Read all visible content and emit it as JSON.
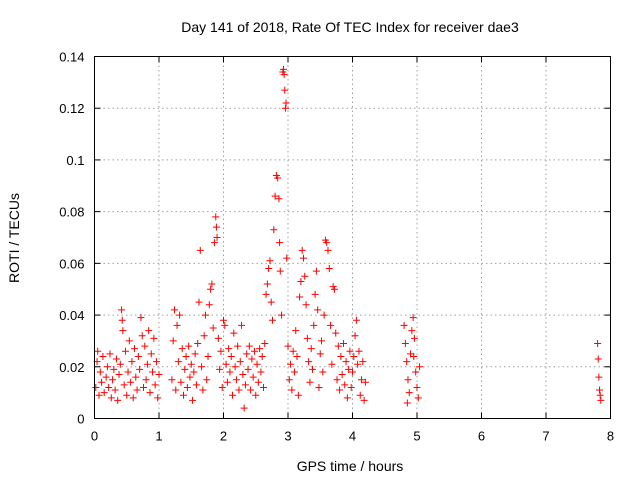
{
  "chart_data": {
    "type": "scatter",
    "title": "Day 141 of 2018, Rate Of TEC Index for receiver dae3",
    "xlabel": "GPS time / hours",
    "ylabel": "ROTI / TECUs",
    "xlim": [
      0,
      8
    ],
    "ylim": [
      0,
      0.14
    ],
    "grid": true,
    "xticks": [
      0,
      1,
      2,
      3,
      4,
      5,
      6,
      7,
      8
    ],
    "xtick_labels": [
      "0",
      "1",
      "2",
      "3",
      "4",
      "5",
      "6",
      "7",
      "8"
    ],
    "yticks": [
      0,
      0.02,
      0.04,
      0.06,
      0.08,
      0.1,
      0.12,
      0.14
    ],
    "ytick_labels": [
      "0",
      "0.02",
      "0.04",
      "0.06",
      "0.08",
      "0.1",
      "0.12",
      "0.14"
    ],
    "marker": "+",
    "marker_color": "#ff0000",
    "points": [
      [
        0.02,
        0.012
      ],
      [
        0.04,
        0.022
      ],
      [
        0.05,
        0.026
      ],
      [
        0.07,
        0.009
      ],
      [
        0.09,
        0.018
      ],
      [
        0.11,
        0.014
      ],
      [
        0.13,
        0.024
      ],
      [
        0.15,
        0.01
      ],
      [
        0.18,
        0.016
      ],
      [
        0.2,
        0.02
      ],
      [
        0.22,
        0.012
      ],
      [
        0.24,
        0.025
      ],
      [
        0.26,
        0.008
      ],
      [
        0.28,
        0.015
      ],
      [
        0.3,
        0.019
      ],
      [
        0.32,
        0.011
      ],
      [
        0.34,
        0.023
      ],
      [
        0.36,
        0.007
      ],
      [
        0.38,
        0.017
      ],
      [
        0.4,
        0.021
      ],
      [
        0.42,
        0.042
      ],
      [
        0.43,
        0.038
      ],
      [
        0.44,
        0.034
      ],
      [
        0.46,
        0.013
      ],
      [
        0.48,
        0.026
      ],
      [
        0.5,
        0.009
      ],
      [
        0.52,
        0.018
      ],
      [
        0.54,
        0.03
      ],
      [
        0.56,
        0.014
      ],
      [
        0.58,
        0.022
      ],
      [
        0.6,
        0.008
      ],
      [
        0.62,
        0.027
      ],
      [
        0.64,
        0.016
      ],
      [
        0.66,
        0.011
      ],
      [
        0.68,
        0.024
      ],
      [
        0.7,
        0.019
      ],
      [
        0.72,
        0.039
      ],
      [
        0.74,
        0.032
      ],
      [
        0.76,
        0.012
      ],
      [
        0.78,
        0.028
      ],
      [
        0.8,
        0.015
      ],
      [
        0.82,
        0.021
      ],
      [
        0.84,
        0.034
      ],
      [
        0.86,
        0.01
      ],
      [
        0.88,
        0.025
      ],
      [
        0.9,
        0.018
      ],
      [
        0.92,
        0.031
      ],
      [
        0.94,
        0.013
      ],
      [
        0.96,
        0.022
      ],
      [
        0.98,
        0.008
      ],
      [
        1.0,
        0.017
      ],
      [
        1.2,
        0.015
      ],
      [
        1.22,
        0.03
      ],
      [
        1.24,
        0.042
      ],
      [
        1.26,
        0.011
      ],
      [
        1.28,
        0.036
      ],
      [
        1.3,
        0.022
      ],
      [
        1.32,
        0.04
      ],
      [
        1.34,
        0.014
      ],
      [
        1.36,
        0.027
      ],
      [
        1.38,
        0.009
      ],
      [
        1.4,
        0.019
      ],
      [
        1.42,
        0.024
      ],
      [
        1.44,
        0.012
      ],
      [
        1.46,
        0.028
      ],
      [
        1.48,
        0.016
      ],
      [
        1.5,
        0.021
      ],
      [
        1.52,
        0.007
      ],
      [
        1.54,
        0.018
      ],
      [
        1.56,
        0.025
      ],
      [
        1.58,
        0.013
      ],
      [
        1.6,
        0.029
      ],
      [
        1.62,
        0.045
      ],
      [
        1.64,
        0.065
      ],
      [
        1.66,
        0.02
      ],
      [
        1.68,
        0.011
      ],
      [
        1.7,
        0.032
      ],
      [
        1.72,
        0.04
      ],
      [
        1.74,
        0.015
      ],
      [
        1.76,
        0.024
      ],
      [
        1.78,
        0.044
      ],
      [
        1.8,
        0.05
      ],
      [
        1.82,
        0.052
      ],
      [
        1.84,
        0.035
      ],
      [
        1.86,
        0.068
      ],
      [
        1.88,
        0.078
      ],
      [
        1.89,
        0.074
      ],
      [
        1.9,
        0.07
      ],
      [
        1.92,
        0.031
      ],
      [
        1.94,
        0.019
      ],
      [
        1.96,
        0.026
      ],
      [
        1.98,
        0.012
      ],
      [
        2.0,
        0.038
      ],
      [
        2.02,
        0.036
      ],
      [
        2.04,
        0.021
      ],
      [
        2.06,
        0.014
      ],
      [
        2.08,
        0.027
      ],
      [
        2.1,
        0.018
      ],
      [
        2.12,
        0.024
      ],
      [
        2.14,
        0.009
      ],
      [
        2.16,
        0.033
      ],
      [
        2.18,
        0.02
      ],
      [
        2.2,
        0.015
      ],
      [
        2.22,
        0.028
      ],
      [
        2.24,
        0.011
      ],
      [
        2.26,
        0.022
      ],
      [
        2.28,
        0.036
      ],
      [
        2.3,
        0.017
      ],
      [
        2.32,
        0.004
      ],
      [
        2.34,
        0.013
      ],
      [
        2.36,
        0.025
      ],
      [
        2.38,
        0.019
      ],
      [
        2.4,
        0.028
      ],
      [
        2.42,
        0.011
      ],
      [
        2.44,
        0.023
      ],
      [
        2.46,
        0.016
      ],
      [
        2.48,
        0.026
      ],
      [
        2.5,
        0.009
      ],
      [
        2.52,
        0.021
      ],
      [
        2.54,
        0.014
      ],
      [
        2.56,
        0.027
      ],
      [
        2.58,
        0.018
      ],
      [
        2.6,
        0.024
      ],
      [
        2.62,
        0.012
      ],
      [
        2.64,
        0.029
      ],
      [
        2.66,
        0.048
      ],
      [
        2.68,
        0.052
      ],
      [
        2.7,
        0.058
      ],
      [
        2.72,
        0.061
      ],
      [
        2.74,
        0.045
      ],
      [
        2.76,
        0.038
      ],
      [
        2.78,
        0.073
      ],
      [
        2.8,
        0.086
      ],
      [
        2.82,
        0.094
      ],
      [
        2.84,
        0.093
      ],
      [
        2.86,
        0.085
      ],
      [
        2.87,
        0.068
      ],
      [
        2.88,
        0.057
      ],
      [
        2.9,
        0.04
      ],
      [
        2.92,
        0.134
      ],
      [
        2.93,
        0.135
      ],
      [
        2.94,
        0.133
      ],
      [
        2.95,
        0.127
      ],
      [
        2.96,
        0.12
      ],
      [
        2.97,
        0.122
      ],
      [
        2.98,
        0.062
      ],
      [
        3.0,
        0.028
      ],
      [
        3.02,
        0.015
      ],
      [
        3.04,
        0.021
      ],
      [
        3.06,
        0.011
      ],
      [
        3.08,
        0.026
      ],
      [
        3.1,
        0.018
      ],
      [
        3.12,
        0.034
      ],
      [
        3.14,
        0.024
      ],
      [
        3.16,
        0.009
      ],
      [
        3.18,
        0.047
      ],
      [
        3.2,
        0.053
      ],
      [
        3.22,
        0.065
      ],
      [
        3.24,
        0.062
      ],
      [
        3.26,
        0.055
      ],
      [
        3.28,
        0.044
      ],
      [
        3.3,
        0.031
      ],
      [
        3.32,
        0.022
      ],
      [
        3.34,
        0.014
      ],
      [
        3.36,
        0.027
      ],
      [
        3.38,
        0.019
      ],
      [
        3.4,
        0.036
      ],
      [
        3.42,
        0.048
      ],
      [
        3.44,
        0.057
      ],
      [
        3.46,
        0.042
      ],
      [
        3.48,
        0.012
      ],
      [
        3.5,
        0.025
      ],
      [
        3.52,
        0.03
      ],
      [
        3.54,
        0.018
      ],
      [
        3.56,
        0.04
      ],
      [
        3.58,
        0.069
      ],
      [
        3.6,
        0.068
      ],
      [
        3.62,
        0.065
      ],
      [
        3.64,
        0.058
      ],
      [
        3.66,
        0.036
      ],
      [
        3.68,
        0.021
      ],
      [
        3.7,
        0.051
      ],
      [
        3.72,
        0.05
      ],
      [
        3.74,
        0.033
      ],
      [
        3.76,
        0.015
      ],
      [
        3.78,
        0.028
      ],
      [
        3.8,
        0.011
      ],
      [
        3.82,
        0.024
      ],
      [
        3.84,
        0.017
      ],
      [
        3.86,
        0.029
      ],
      [
        3.88,
        0.013
      ],
      [
        3.9,
        0.022
      ],
      [
        3.92,
        0.008
      ],
      [
        3.94,
        0.019
      ],
      [
        3.96,
        0.026
      ],
      [
        3.98,
        0.012
      ],
      [
        4.0,
        0.018
      ],
      [
        4.02,
        0.024
      ],
      [
        4.04,
        0.032
      ],
      [
        4.06,
        0.038
      ],
      [
        4.08,
        0.021
      ],
      [
        4.1,
        0.026
      ],
      [
        4.12,
        0.009
      ],
      [
        4.14,
        0.015
      ],
      [
        4.16,
        0.022
      ],
      [
        4.18,
        0.007
      ],
      [
        4.2,
        0.014
      ],
      [
        4.8,
        0.036
      ],
      [
        4.82,
        0.029
      ],
      [
        4.84,
        0.022
      ],
      [
        4.86,
        0.015
      ],
      [
        4.88,
        0.01
      ],
      [
        4.9,
        0.025
      ],
      [
        4.92,
        0.034
      ],
      [
        4.94,
        0.039
      ],
      [
        4.96,
        0.031
      ],
      [
        4.98,
        0.018
      ],
      [
        5.0,
        0.012
      ],
      [
        5.02,
        0.008
      ],
      [
        5.04,
        0.02
      ],
      [
        4.85,
        0.006
      ],
      [
        4.95,
        0.024
      ],
      [
        7.8,
        0.029
      ],
      [
        7.81,
        0.023
      ],
      [
        7.82,
        0.016
      ],
      [
        7.83,
        0.011
      ],
      [
        7.84,
        0.009
      ],
      [
        7.85,
        0.007
      ]
    ]
  }
}
